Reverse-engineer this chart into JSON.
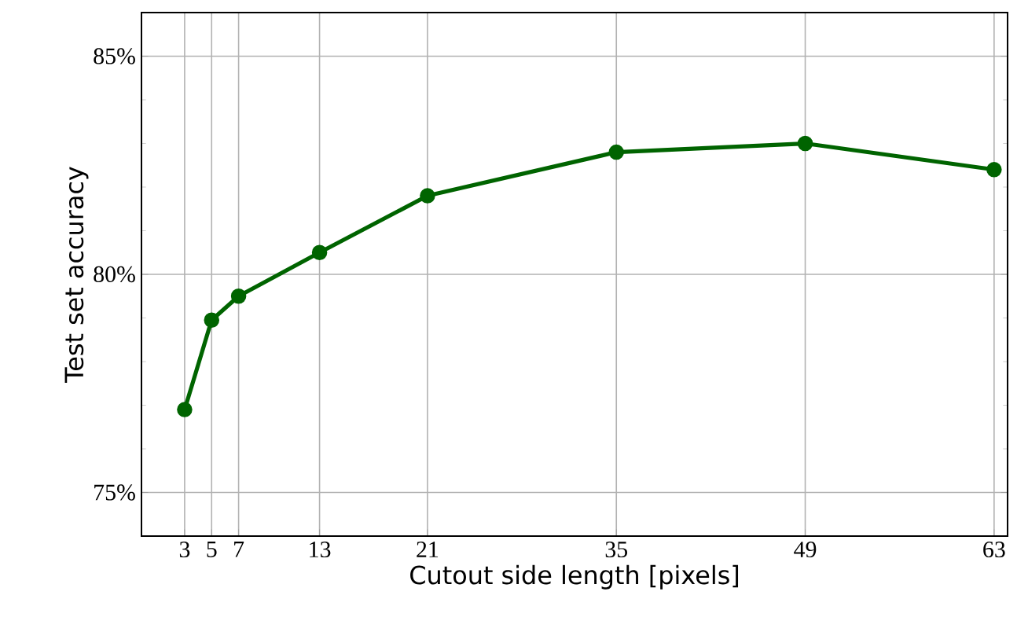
{
  "chart_data": {
    "type": "line",
    "xlabel": "Cutout side length [pixels]",
    "ylabel": "Test set accuracy",
    "x": [
      3,
      5,
      7,
      13,
      21,
      35,
      49,
      63
    ],
    "series": [
      {
        "color": "#006400",
        "values": [
          76.9,
          78.95,
          79.5,
          80.5,
          81.8,
          82.8,
          83.0,
          82.4
        ]
      }
    ],
    "xlim": [
      -0.2,
      64
    ],
    "ylim": [
      74,
      86
    ],
    "xticks": [
      3,
      5,
      7,
      13,
      21,
      35,
      49,
      63
    ],
    "yticks": [
      {
        "value": 75,
        "label": "75%"
      },
      {
        "value": 80,
        "label": "80%"
      },
      {
        "value": 85,
        "label": "85%"
      }
    ],
    "grid": true,
    "marker": "circle",
    "line_style": "solid"
  }
}
